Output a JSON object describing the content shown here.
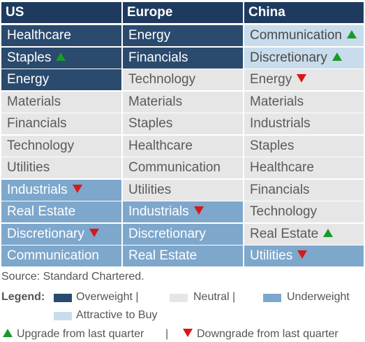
{
  "columns": [
    {
      "header": "US",
      "rows": [
        {
          "label": "Healthcare",
          "status": "overweight",
          "change": ""
        },
        {
          "label": "Staples",
          "status": "overweight",
          "change": "up"
        },
        {
          "label": "Energy",
          "status": "overweight",
          "change": ""
        },
        {
          "label": "Materials",
          "status": "neutral",
          "change": ""
        },
        {
          "label": "Financials",
          "status": "neutral",
          "change": ""
        },
        {
          "label": "Technology",
          "status": "neutral",
          "change": ""
        },
        {
          "label": "Utilities",
          "status": "neutral",
          "change": ""
        },
        {
          "label": "Industrials",
          "status": "underweight",
          "change": "down"
        },
        {
          "label": "Real Estate",
          "status": "underweight",
          "change": ""
        },
        {
          "label": "Discretionary",
          "status": "underweight",
          "change": "down"
        },
        {
          "label": "Communication",
          "status": "underweight",
          "change": ""
        }
      ]
    },
    {
      "header": "Europe",
      "rows": [
        {
          "label": "Energy",
          "status": "overweight",
          "change": ""
        },
        {
          "label": "Financials",
          "status": "overweight",
          "change": ""
        },
        {
          "label": "Technology",
          "status": "neutral",
          "change": ""
        },
        {
          "label": "Materials",
          "status": "neutral",
          "change": ""
        },
        {
          "label": "Staples",
          "status": "neutral",
          "change": ""
        },
        {
          "label": "Healthcare",
          "status": "neutral",
          "change": ""
        },
        {
          "label": "Communication",
          "status": "neutral",
          "change": ""
        },
        {
          "label": "Utilities",
          "status": "neutral",
          "change": ""
        },
        {
          "label": "Industrials",
          "status": "underweight",
          "change": "down"
        },
        {
          "label": "Discretionary",
          "status": "underweight",
          "change": ""
        },
        {
          "label": "Real Estate",
          "status": "underweight",
          "change": ""
        }
      ]
    },
    {
      "header": "China",
      "rows": [
        {
          "label": "Communication",
          "status": "attractive",
          "change": "up"
        },
        {
          "label": "Discretionary",
          "status": "attractive",
          "change": "up"
        },
        {
          "label": "Energy",
          "status": "neutral",
          "change": "down"
        },
        {
          "label": "Materials",
          "status": "neutral",
          "change": ""
        },
        {
          "label": "Industrials",
          "status": "neutral",
          "change": ""
        },
        {
          "label": "Staples",
          "status": "neutral",
          "change": ""
        },
        {
          "label": "Healthcare",
          "status": "neutral",
          "change": ""
        },
        {
          "label": "Financials",
          "status": "neutral",
          "change": ""
        },
        {
          "label": "Technology",
          "status": "neutral",
          "change": ""
        },
        {
          "label": "Real Estate",
          "status": "neutral",
          "change": "up"
        },
        {
          "label": "Utilities",
          "status": "underweight",
          "change": "down"
        }
      ]
    }
  ],
  "source": "Source: Standard Chartered.",
  "legend": {
    "title": "Legend:",
    "overweight": "Overweight",
    "neutral": "Neutral",
    "underweight": "Underweight",
    "attractive": "Attractive to Buy",
    "separator": "|",
    "upgrade": "Upgrade from last quarter",
    "downgrade": "Downgrade from last quarter"
  },
  "colors": {
    "overweight": "#2a4a6e",
    "neutral": "#e6e6e6",
    "underweight": "#7ea7cc",
    "attractive": "#c8dceb",
    "header": "#1f3a5f",
    "up": "#1a9a2a",
    "down": "#d41a1a"
  },
  "icons": {
    "up": "triangle-up-icon",
    "down": "triangle-down-icon"
  }
}
